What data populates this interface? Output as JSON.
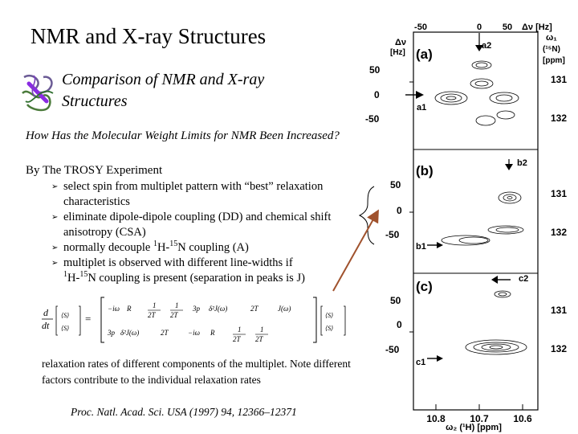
{
  "slide": {
    "title": "NMR and X-ray Structures",
    "subtitle": "Comparison of NMR and X-ray Structures",
    "question": "How Has the  Molecular Weight Limits for NMR Been Increased?",
    "intro": "By The TROSY Experiment",
    "bullets": [
      {
        "text": "select spin from multiplet pattern with “best” relaxation characteristics"
      },
      {
        "text": "eliminate dipole-dipole coupling (DD) and chemical shift anisotropy (CSA)"
      },
      {
        "pre": "normally decouple ",
        "iso1": "1",
        "mid": "H-",
        "iso2": "15",
        "post": "N coupling (A)"
      },
      {
        "text": "multiplet is observed with different line-widths if",
        "iso1": "1",
        "mid": "H-",
        "iso2": "15",
        "post": "N coupling is present (separation in peaks is J)"
      }
    ],
    "note": "relaxation rates of different components of the multiplet.  Note different factors contribute to the individual relaxation rates",
    "citation": "Proc. Natl. Acad. Sci. USA (1997) 94, 12366–12371"
  },
  "equation": {
    "lhs_d": "d",
    "lhs_dt": "dt",
    "eq": "=",
    "t1": "1",
    "t2": "1",
    "t3": "3p",
    "t4": "1",
    "t5": "1",
    "t6": "3p",
    "t7": "1",
    "t8": "1",
    "r1": "R",
    "r2": "R"
  },
  "spectra": {
    "top_axis_label": "Δν [Hz]",
    "top_axis_ticks": [
      "-50",
      "0",
      "50"
    ],
    "right_label": "ω₁",
    "right_label2": "(¹⁵N)",
    "right_label3": "[ppm]",
    "left_axis_label1": "Δν",
    "left_axis_label2": "[Hz]",
    "panels": [
      {
        "label": "(a)",
        "ticks": [
          "50",
          "0",
          "-50"
        ],
        "ppm": [
          "131",
          "132"
        ],
        "peaks": [
          "a2",
          "a1"
        ]
      },
      {
        "label": "(b)",
        "ticks": [
          "50",
          "0",
          "-50"
        ],
        "ppm": [
          "131",
          "132"
        ],
        "peaks": [
          "b2",
          "b1"
        ]
      },
      {
        "label": "(c)",
        "ticks": [
          "50",
          "0",
          "-50"
        ],
        "ppm": [
          "131",
          "132"
        ],
        "peaks": [
          "c2",
          "c1"
        ]
      }
    ],
    "x_ticks": [
      "10.8",
      "10.7",
      "10.6"
    ],
    "x_axis_label": "ω₂ (¹H) [ppm]"
  },
  "colors": {
    "pointer": "#a0522d",
    "contour": "#000000"
  }
}
